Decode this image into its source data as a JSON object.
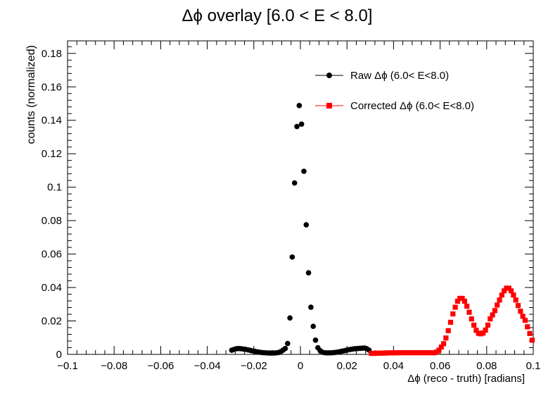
{
  "chart_data": {
    "type": "scatter",
    "title": "Δϕ overlay [6.0 < E < 8.0]",
    "xlabel": "Δϕ (reco - truth) [radians]",
    "ylabel": "counts (normalized)",
    "xlim": [
      -0.1,
      0.1
    ],
    "ylim": [
      0,
      0.1875
    ],
    "x_ticks": [
      -0.1,
      -0.08,
      -0.06,
      -0.04,
      -0.02,
      0,
      0.02,
      0.04,
      0.06,
      0.08,
      0.1
    ],
    "x_tick_labels": [
      "−0.1",
      "−0.08",
      "−0.06",
      "−0.04",
      "−0.02",
      "0",
      "0.02",
      "0.04",
      "0.06",
      "0.08",
      "0.1"
    ],
    "y_ticks": [
      0,
      0.02,
      0.04,
      0.06,
      0.08,
      0.1,
      0.12,
      0.14,
      0.16,
      0.18
    ],
    "y_tick_labels": [
      "0",
      "0.02",
      "0.04",
      "0.06",
      "0.08",
      "0.1",
      "0.12",
      "0.14",
      "0.16",
      "0.18"
    ],
    "grid": false,
    "legend_position": "top-right",
    "series": [
      {
        "name": "Raw Δϕ (6.0< E<8.0)",
        "color": "#000000",
        "marker": "circle",
        "x": [
          -0.0295,
          -0.0285,
          -0.0275,
          -0.0265,
          -0.0255,
          -0.0245,
          -0.0235,
          -0.0225,
          -0.0215,
          -0.0205,
          -0.0195,
          -0.0185,
          -0.0175,
          -0.0165,
          -0.0155,
          -0.0145,
          -0.0135,
          -0.0125,
          -0.0115,
          -0.0105,
          -0.0095,
          -0.0085,
          -0.0075,
          -0.0065,
          -0.0055,
          -0.0045,
          -0.0035,
          -0.0025,
          -0.0015,
          -0.0005,
          0.0005,
          0.0015,
          0.0025,
          0.0035,
          0.0045,
          0.0055,
          0.0065,
          0.0075,
          0.0085,
          0.0095,
          0.0105,
          0.0115,
          0.0125,
          0.0135,
          0.0145,
          0.0155,
          0.0165,
          0.0175,
          0.0185,
          0.0195,
          0.0205,
          0.0215,
          0.0225,
          0.0235,
          0.0245,
          0.0255,
          0.0265,
          0.0275,
          0.0285,
          0.0295
        ],
        "y": [
          0.0025,
          0.003,
          0.0034,
          0.0035,
          0.0034,
          0.0032,
          0.003,
          0.0027,
          0.0024,
          0.0021,
          0.0018,
          0.0015,
          0.0013,
          0.0011,
          0.001,
          0.0009,
          0.0008,
          0.0008,
          0.0008,
          0.0009,
          0.0011,
          0.0016,
          0.0025,
          0.0035,
          0.0065,
          0.0218,
          0.0582,
          0.1025,
          0.1363,
          0.1488,
          0.1377,
          0.1095,
          0.0775,
          0.0488,
          0.0282,
          0.0168,
          0.0085,
          0.004,
          0.0022,
          0.0013,
          0.001,
          0.0009,
          0.0009,
          0.001,
          0.0011,
          0.0013,
          0.0015,
          0.0018,
          0.0021,
          0.0024,
          0.0027,
          0.003,
          0.0032,
          0.0034,
          0.0035,
          0.0036,
          0.0037,
          0.0038,
          0.0034,
          0.0025
        ]
      },
      {
        "name": "Corrected  Δϕ (6.0< E<8.0)",
        "color": "#ff0000",
        "marker": "square",
        "x": [
          0.0305,
          0.0315,
          0.0325,
          0.0335,
          0.0345,
          0.0355,
          0.0365,
          0.0375,
          0.0385,
          0.0395,
          0.0405,
          0.0415,
          0.0425,
          0.0435,
          0.0445,
          0.0455,
          0.0465,
          0.0475,
          0.0485,
          0.0495,
          0.0505,
          0.0515,
          0.0525,
          0.0535,
          0.0545,
          0.0555,
          0.0565,
          0.0575,
          0.0585,
          0.0595,
          0.0605,
          0.0615,
          0.0625,
          0.0635,
          0.0645,
          0.0655,
          0.0665,
          0.0675,
          0.0685,
          0.0695,
          0.0705,
          0.0715,
          0.0725,
          0.0735,
          0.0745,
          0.0755,
          0.0765,
          0.0775,
          0.0785,
          0.0795,
          0.0805,
          0.0815,
          0.0825,
          0.0835,
          0.0845,
          0.0855,
          0.0865,
          0.0875,
          0.0885,
          0.0895,
          0.0905,
          0.0915,
          0.0925,
          0.0935,
          0.0945,
          0.0955,
          0.0965,
          0.0975,
          0.0985,
          0.0995
        ],
        "y": [
          0.0006,
          0.0006,
          0.0007,
          0.0007,
          0.0008,
          0.0008,
          0.0008,
          0.0009,
          0.0009,
          0.0009,
          0.0009,
          0.001,
          0.001,
          0.001,
          0.001,
          0.001,
          0.001,
          0.001,
          0.001,
          0.001,
          0.001,
          0.001,
          0.001,
          0.001,
          0.001,
          0.001,
          0.001,
          0.001,
          0.0014,
          0.0025,
          0.0044,
          0.0064,
          0.0098,
          0.0142,
          0.0192,
          0.0242,
          0.0282,
          0.0318,
          0.0335,
          0.0335,
          0.0318,
          0.0288,
          0.0252,
          0.0212,
          0.0175,
          0.0144,
          0.0126,
          0.0123,
          0.0128,
          0.0145,
          0.0175,
          0.0212,
          0.0236,
          0.0262,
          0.0295,
          0.0325,
          0.0355,
          0.038,
          0.0396,
          0.0396,
          0.038,
          0.0355,
          0.0325,
          0.0292,
          0.0258,
          0.0228,
          0.0204,
          0.0165,
          0.0125,
          0.0085
        ]
      }
    ]
  }
}
